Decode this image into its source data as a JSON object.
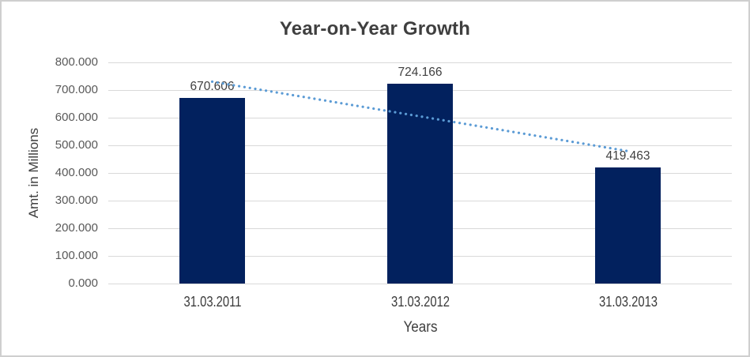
{
  "chart_data": {
    "type": "bar",
    "title": "Year-on-Year Growth",
    "xlabel": "Years",
    "ylabel": "Amt. in Millions",
    "categories": [
      "31.03.2011",
      "31.03.2012",
      "31.03.2013"
    ],
    "values": [
      670.606,
      724.166,
      419.463
    ],
    "data_labels": [
      "670.606",
      "724.166",
      "419.463"
    ],
    "ylim": [
      0,
      800
    ],
    "ytick_labels": [
      "800.000",
      "700.000",
      "600.000",
      "500.000",
      "400.000",
      "300.000",
      "200.000",
      "100.000",
      "0.000"
    ],
    "grid": true,
    "legend_position": "none",
    "trendline": {
      "type": "linear",
      "style": "dotted",
      "color": "#5b9bd5"
    },
    "colors": {
      "bar": "#02215e",
      "gridline": "#d9d9d9",
      "axis_text": "#595959",
      "label_text": "#404040",
      "title_text": "#3f3f3f"
    }
  }
}
